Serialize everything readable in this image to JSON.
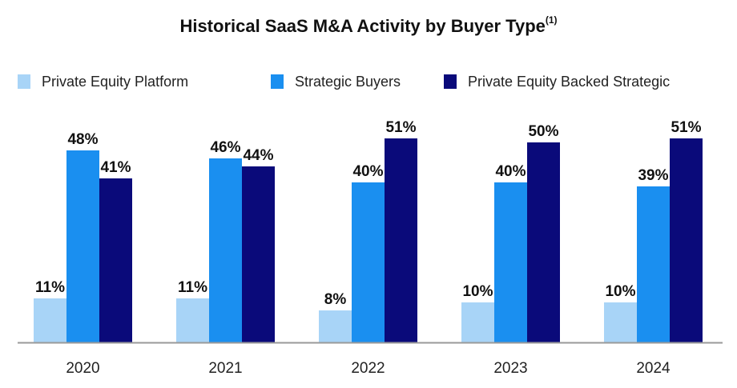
{
  "title": "Historical SaaS M&A Activity by Buyer Type",
  "title_footnote": "(1)",
  "colors": {
    "private_equity_platform": "#a8d4f7",
    "strategic_buyers": "#1a8ff0",
    "private_equity_backed_strategic": "#0a0a7a",
    "axis": "#9a9a9a"
  },
  "legend": [
    {
      "label": "Private Equity Platform",
      "color": "#a8d4f7"
    },
    {
      "label": "Strategic Buyers",
      "color": "#1a8ff0"
    },
    {
      "label": "Private Equity Backed Strategic",
      "color": "#0a0a7a"
    }
  ],
  "chart_data": {
    "type": "bar",
    "title": "Historical SaaS M&A Activity by Buyer Type",
    "categories": [
      "2020",
      "2021",
      "2022",
      "2023",
      "2024"
    ],
    "series": [
      {
        "name": "Private Equity Platform",
        "color": "#a8d4f7",
        "values": [
          11,
          11,
          8,
          10,
          10
        ],
        "labels": [
          "11%",
          "11%",
          "8%",
          "10%",
          "10%"
        ]
      },
      {
        "name": "Strategic Buyers",
        "color": "#1a8ff0",
        "values": [
          48,
          46,
          40,
          40,
          39
        ],
        "labels": [
          "48%",
          "46%",
          "40%",
          "40%",
          "39%"
        ]
      },
      {
        "name": "Private Equity Backed Strategic",
        "color": "#0a0a7a",
        "values": [
          41,
          44,
          51,
          50,
          51
        ],
        "labels": [
          "41%",
          "44%",
          "51%",
          "50%",
          "51%"
        ]
      }
    ],
    "xlabel": "",
    "ylabel": "",
    "ylim": [
      0,
      60
    ],
    "grid": false,
    "legend_position": "top"
  }
}
